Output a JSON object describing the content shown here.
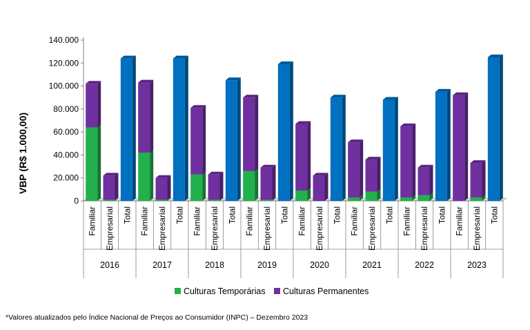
{
  "chart_data": {
    "type": "bar",
    "stacked": true,
    "ylabel": "VBP (R$ 1.000,00)",
    "xlabel": "",
    "ylim": [
      0,
      140000
    ],
    "yticks": [
      0,
      20000,
      40000,
      60000,
      80000,
      100000,
      120000,
      140000
    ],
    "ytick_labels": [
      "0",
      "20.000",
      "40.000",
      "60.000",
      "80.000",
      "100.000",
      "120.000",
      "140.000"
    ],
    "grid": false,
    "legend_position": "bottom",
    "groups": [
      "2016",
      "2017",
      "2018",
      "2019",
      "2020",
      "2021",
      "2022",
      "2023"
    ],
    "subcategories": [
      "Familiar",
      "Empresarial",
      "Total"
    ],
    "series": [
      {
        "name": "Culturas Temporárias",
        "color": "#22b14c",
        "values": [
          [
            64000,
            1000,
            null
          ],
          [
            42000,
            1000,
            null
          ],
          [
            23000,
            1000,
            null
          ],
          [
            26000,
            1000,
            null
          ],
          [
            9000,
            0,
            null
          ],
          [
            3000,
            8000,
            null
          ],
          [
            3000,
            5000,
            null
          ],
          [
            0,
            3000,
            null
          ]
        ]
      },
      {
        "name": "Culturas Permanentes",
        "color": "#7030a0",
        "values": [
          [
            38000,
            21000,
            null
          ],
          [
            61000,
            19000,
            null
          ],
          [
            58000,
            22000,
            null
          ],
          [
            64000,
            28000,
            null
          ],
          [
            58000,
            22000,
            null
          ],
          [
            48000,
            28000,
            null
          ],
          [
            62000,
            24000,
            null
          ],
          [
            92000,
            30000,
            null
          ]
        ]
      },
      {
        "name": "Total",
        "color": "#0070c0",
        "in_legend": false,
        "values": [
          124000,
          124000,
          105000,
          119000,
          90000,
          88000,
          95000,
          125000
        ]
      }
    ]
  },
  "footnote": "*Valores atualizados pelo Índice Nacional de Preços ao Consumidor (INPC) – Dezembro 2023"
}
